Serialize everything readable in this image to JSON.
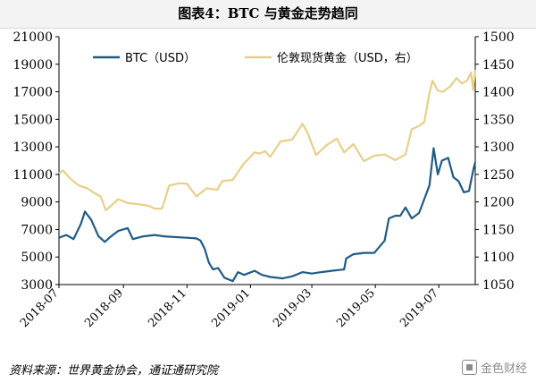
{
  "title": "图表4：BTC 与黄金走势趋同",
  "source": "资料来源：世界黄金协会，通证通研究院",
  "watermark": "金色财经",
  "colors": {
    "btc": "#1f5c85",
    "gold": "#e8cf88",
    "axis": "#000000"
  },
  "chart_data": {
    "type": "line",
    "title": "",
    "xlabel": "",
    "ylabel": "",
    "x_ticks": [
      "2018-07",
      "2018-09",
      "2018-11",
      "2019-01",
      "2019-03",
      "2019-05",
      "2019-07"
    ],
    "x_range": [
      "2018-07-01",
      "2019-08-05"
    ],
    "y_left": {
      "range": [
        3000,
        21000
      ],
      "ticks": [
        3000,
        5000,
        7000,
        9000,
        11000,
        13000,
        15000,
        17000,
        19000,
        21000
      ]
    },
    "y_right": {
      "range": [
        1050,
        1500
      ],
      "ticks": [
        1050,
        1100,
        1150,
        1200,
        1250,
        1300,
        1350,
        1400,
        1450,
        1500
      ]
    },
    "legend": "top",
    "grid": false,
    "series": [
      {
        "name": "BTC（USD）",
        "axis": "left",
        "color": "btc",
        "points": [
          [
            "2018-07-01",
            6400
          ],
          [
            "2018-07-08",
            6600
          ],
          [
            "2018-07-15",
            6300
          ],
          [
            "2018-07-22",
            7400
          ],
          [
            "2018-07-26",
            8300
          ],
          [
            "2018-08-01",
            7700
          ],
          [
            "2018-08-08",
            6500
          ],
          [
            "2018-08-14",
            6100
          ],
          [
            "2018-08-20",
            6500
          ],
          [
            "2018-08-27",
            6900
          ],
          [
            "2018-09-05",
            7100
          ],
          [
            "2018-09-10",
            6300
          ],
          [
            "2018-09-20",
            6500
          ],
          [
            "2018-10-01",
            6600
          ],
          [
            "2018-10-10",
            6500
          ],
          [
            "2018-10-20",
            6450
          ],
          [
            "2018-11-01",
            6400
          ],
          [
            "2018-11-10",
            6350
          ],
          [
            "2018-11-14",
            6200
          ],
          [
            "2018-11-18",
            5600
          ],
          [
            "2018-11-22",
            4600
          ],
          [
            "2018-11-26",
            4100
          ],
          [
            "2018-12-01",
            4200
          ],
          [
            "2018-12-07",
            3500
          ],
          [
            "2018-12-15",
            3250
          ],
          [
            "2018-12-20",
            3900
          ],
          [
            "2018-12-26",
            3700
          ],
          [
            "2019-01-05",
            4000
          ],
          [
            "2019-01-12",
            3700
          ],
          [
            "2019-01-20",
            3550
          ],
          [
            "2019-02-01",
            3450
          ],
          [
            "2019-02-10",
            3600
          ],
          [
            "2019-02-20",
            3900
          ],
          [
            "2019-03-01",
            3800
          ],
          [
            "2019-03-10",
            3900
          ],
          [
            "2019-03-20",
            4000
          ],
          [
            "2019-04-01",
            4100
          ],
          [
            "2019-04-03",
            4900
          ],
          [
            "2019-04-10",
            5200
          ],
          [
            "2019-04-20",
            5300
          ],
          [
            "2019-04-30",
            5300
          ],
          [
            "2019-05-10",
            6200
          ],
          [
            "2019-05-14",
            7800
          ],
          [
            "2019-05-20",
            8000
          ],
          [
            "2019-05-25",
            8000
          ],
          [
            "2019-05-30",
            8600
          ],
          [
            "2019-06-05",
            7800
          ],
          [
            "2019-06-12",
            8200
          ],
          [
            "2019-06-17",
            9200
          ],
          [
            "2019-06-22",
            10200
          ],
          [
            "2019-06-26",
            12900
          ],
          [
            "2019-06-30",
            11000
          ],
          [
            "2019-07-04",
            12000
          ],
          [
            "2019-07-10",
            12200
          ],
          [
            "2019-07-15",
            10800
          ],
          [
            "2019-07-20",
            10500
          ],
          [
            "2019-07-25",
            9700
          ],
          [
            "2019-07-30",
            9800
          ],
          [
            "2019-08-03",
            11300
          ],
          [
            "2019-08-05",
            11900
          ]
        ]
      },
      {
        "name": "伦敦现货黄金（USD，右）",
        "axis": "right",
        "color": "gold",
        "points": [
          [
            "2018-07-01",
            1252
          ],
          [
            "2018-07-05",
            1257
          ],
          [
            "2018-07-12",
            1242
          ],
          [
            "2018-07-20",
            1230
          ],
          [
            "2018-07-28",
            1225
          ],
          [
            "2018-08-05",
            1215
          ],
          [
            "2018-08-10",
            1210
          ],
          [
            "2018-08-15",
            1185
          ],
          [
            "2018-08-20",
            1193
          ],
          [
            "2018-08-27",
            1205
          ],
          [
            "2018-09-05",
            1198
          ],
          [
            "2018-09-15",
            1196
          ],
          [
            "2018-09-25",
            1193
          ],
          [
            "2018-10-01",
            1188
          ],
          [
            "2018-10-08",
            1188
          ],
          [
            "2018-10-15",
            1230
          ],
          [
            "2018-10-25",
            1234
          ],
          [
            "2018-11-01",
            1233
          ],
          [
            "2018-11-10",
            1210
          ],
          [
            "2018-11-20",
            1225
          ],
          [
            "2018-11-30",
            1222
          ],
          [
            "2018-12-05",
            1238
          ],
          [
            "2018-12-15",
            1240
          ],
          [
            "2018-12-25",
            1268
          ],
          [
            "2019-01-05",
            1290
          ],
          [
            "2019-01-10",
            1288
          ],
          [
            "2019-01-15",
            1292
          ],
          [
            "2019-01-20",
            1282
          ],
          [
            "2019-01-30",
            1310
          ],
          [
            "2019-02-10",
            1313
          ],
          [
            "2019-02-20",
            1342
          ],
          [
            "2019-02-25",
            1325
          ],
          [
            "2019-03-05",
            1285
          ],
          [
            "2019-03-15",
            1303
          ],
          [
            "2019-03-25",
            1315
          ],
          [
            "2019-04-01",
            1290
          ],
          [
            "2019-04-10",
            1305
          ],
          [
            "2019-04-20",
            1274
          ],
          [
            "2019-04-30",
            1284
          ],
          [
            "2019-05-10",
            1286
          ],
          [
            "2019-05-20",
            1276
          ],
          [
            "2019-05-30",
            1286
          ],
          [
            "2019-06-05",
            1332
          ],
          [
            "2019-06-12",
            1338
          ],
          [
            "2019-06-17",
            1345
          ],
          [
            "2019-06-22",
            1398
          ],
          [
            "2019-06-25",
            1420
          ],
          [
            "2019-06-30",
            1402
          ],
          [
            "2019-07-05",
            1400
          ],
          [
            "2019-07-12",
            1410
          ],
          [
            "2019-07-18",
            1425
          ],
          [
            "2019-07-23",
            1415
          ],
          [
            "2019-07-28",
            1420
          ],
          [
            "2019-08-01",
            1435
          ],
          [
            "2019-08-03",
            1403
          ],
          [
            "2019-08-05",
            1440
          ]
        ]
      }
    ]
  }
}
